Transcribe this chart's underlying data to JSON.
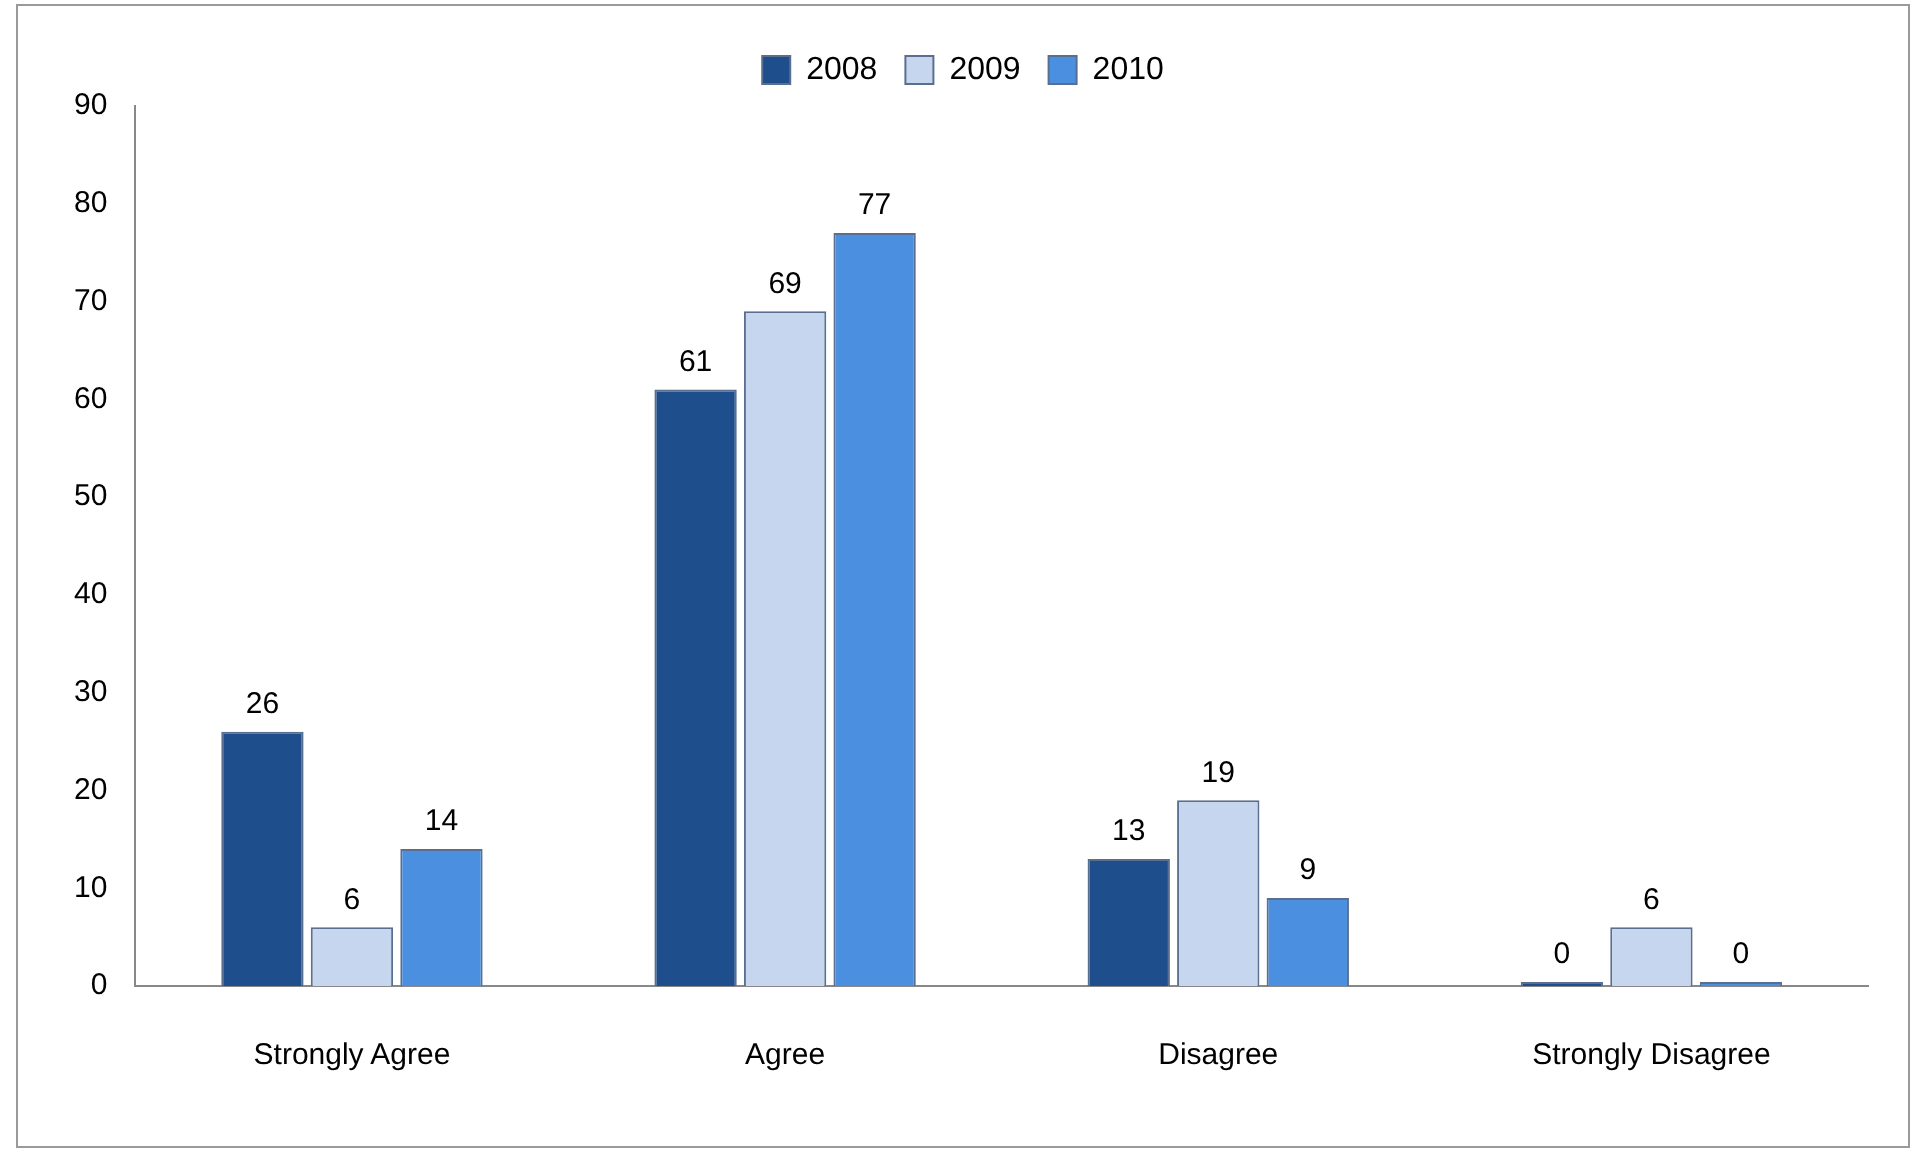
{
  "chart_data": {
    "type": "bar",
    "categories": [
      "Strongly Agree",
      "Agree",
      "Disagree",
      "Strongly Disagree"
    ],
    "series": [
      {
        "name": "2008",
        "color": "#1f4e8c",
        "values": [
          26,
          61,
          13,
          0
        ]
      },
      {
        "name": "2009",
        "color": "#c6d6ee",
        "values": [
          6,
          69,
          19,
          6
        ]
      },
      {
        "name": "2010",
        "color": "#4a8fe0",
        "values": [
          14,
          77,
          9,
          0
        ]
      }
    ],
    "ylim": [
      0,
      90
    ],
    "yticks": [
      0,
      10,
      20,
      30,
      40,
      50,
      60,
      70,
      80,
      90
    ],
    "grid": false,
    "legend": "top",
    "data_labels": true
  }
}
